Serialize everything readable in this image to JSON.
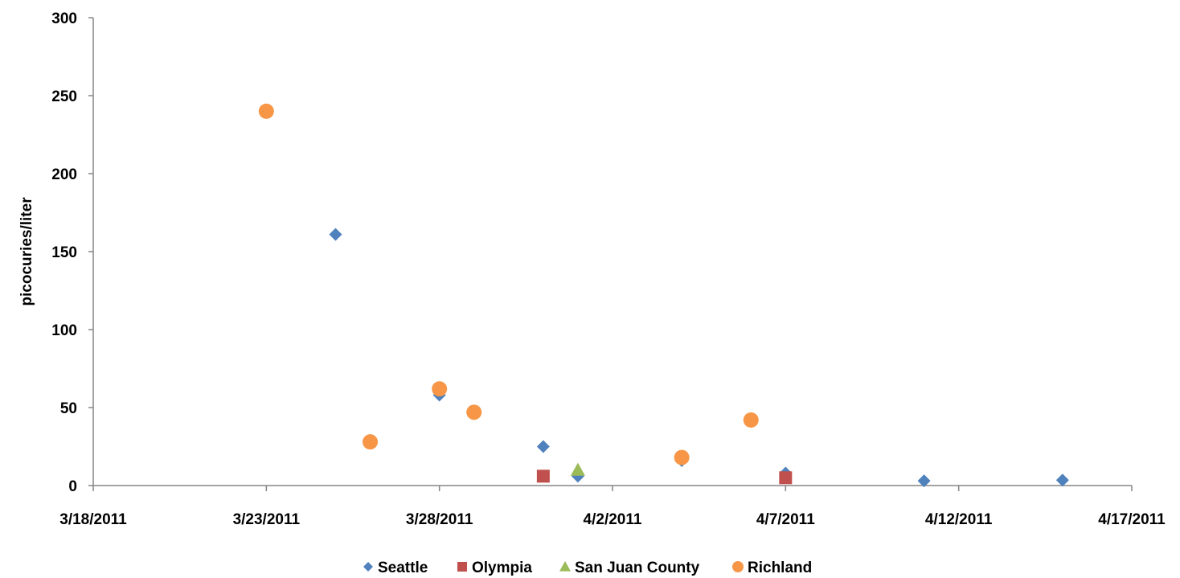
{
  "chart_data": {
    "type": "scatter",
    "title": "",
    "xlabel": "",
    "ylabel": "picocuries/liter",
    "x_axis": {
      "kind": "date",
      "min": "3/18/2011",
      "max": "4/17/2011",
      "ticks": [
        "3/18/2011",
        "3/23/2011",
        "3/28/2011",
        "4/2/2011",
        "4/7/2011",
        "4/12/2011",
        "4/17/2011"
      ]
    },
    "y_axis": {
      "min": 0,
      "max": 300,
      "ticks": [
        0,
        50,
        100,
        150,
        200,
        250,
        300
      ]
    },
    "grid": false,
    "legend_position": "bottom",
    "series": [
      {
        "name": "Seattle",
        "color": "#4F81BD",
        "marker": "diamond",
        "points": [
          {
            "x": "3/25/2011",
            "y": 161
          },
          {
            "x": "3/28/2011",
            "y": 58
          },
          {
            "x": "3/31/2011",
            "y": 25
          },
          {
            "x": "4/1/2011",
            "y": 6
          },
          {
            "x": "4/4/2011",
            "y": 16
          },
          {
            "x": "4/7/2011",
            "y": 8
          },
          {
            "x": "4/11/2011",
            "y": 3
          },
          {
            "x": "4/15/2011",
            "y": 3.5
          }
        ]
      },
      {
        "name": "Olympia",
        "color": "#C0504D",
        "marker": "square",
        "points": [
          {
            "x": "3/31/2011",
            "y": 6
          },
          {
            "x": "4/7/2011",
            "y": 5
          }
        ]
      },
      {
        "name": "San Juan County",
        "color": "#9BBB59",
        "marker": "triangle",
        "points": [
          {
            "x": "4/1/2011",
            "y": 10
          }
        ]
      },
      {
        "name": "Richland",
        "color": "#F79646",
        "marker": "circle",
        "points": [
          {
            "x": "3/23/2011",
            "y": 240
          },
          {
            "x": "3/26/2011",
            "y": 28
          },
          {
            "x": "3/28/2011",
            "y": 62
          },
          {
            "x": "3/29/2011",
            "y": 47
          },
          {
            "x": "4/4/2011",
            "y": 18
          },
          {
            "x": "4/6/2011",
            "y": 42
          }
        ]
      }
    ]
  }
}
